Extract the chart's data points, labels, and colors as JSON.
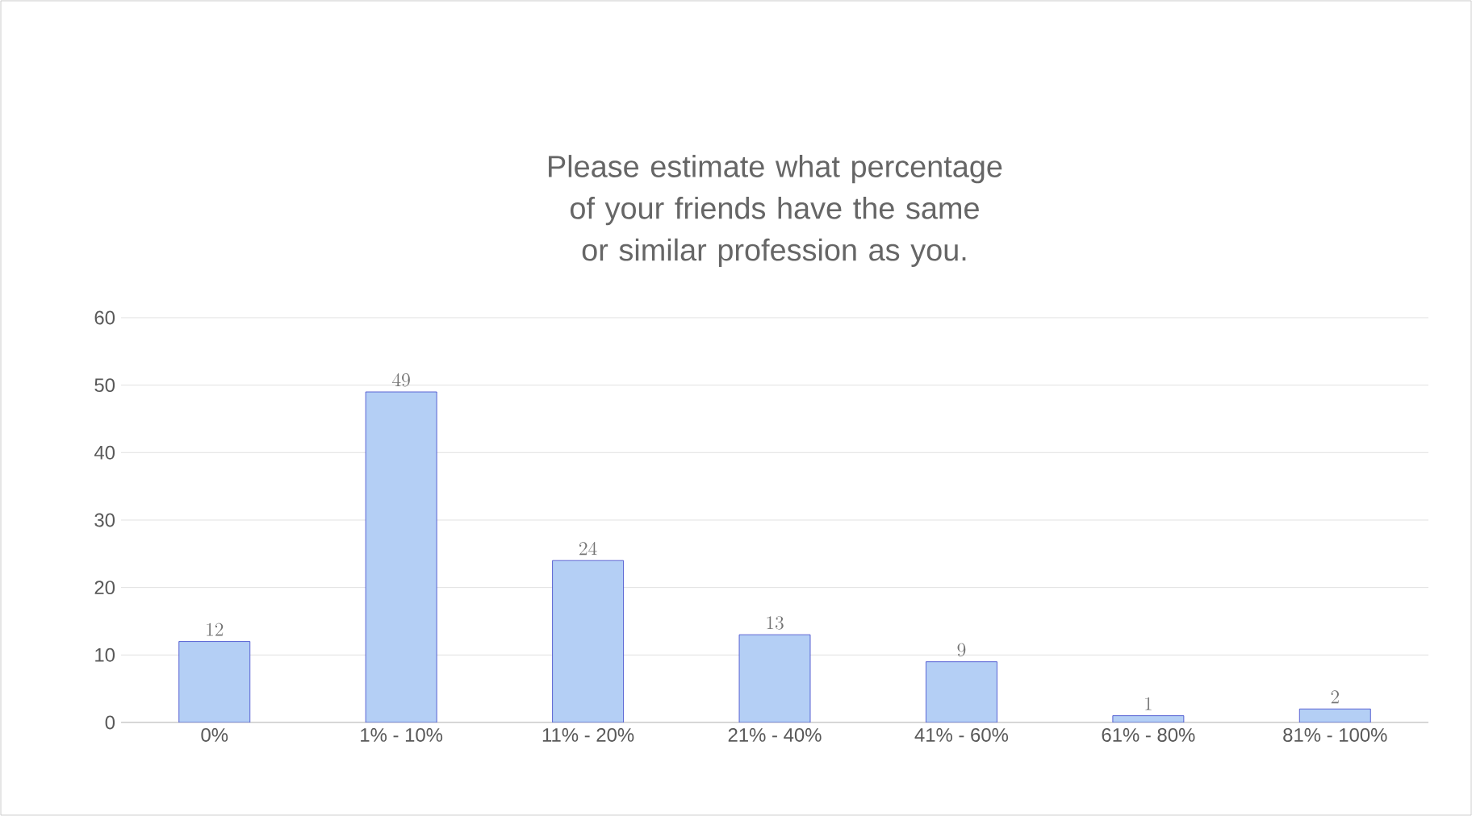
{
  "chart_data": {
    "type": "bar",
    "title": "Please estimate what percentage of your friends have the same or similar profession as you.",
    "categories": [
      "0%",
      "1% - 10%",
      "11% - 20%",
      "21% - 40%",
      "41% - 60%",
      "61% - 80%",
      "81% - 100%"
    ],
    "values": [
      12,
      49,
      24,
      13,
      9,
      1,
      2
    ],
    "color": "#b4cff5",
    "ylim": [
      0,
      60
    ],
    "yticks": [
      0,
      10,
      20,
      30,
      40,
      50,
      60
    ],
    "grid": "y",
    "data_labels": true
  }
}
